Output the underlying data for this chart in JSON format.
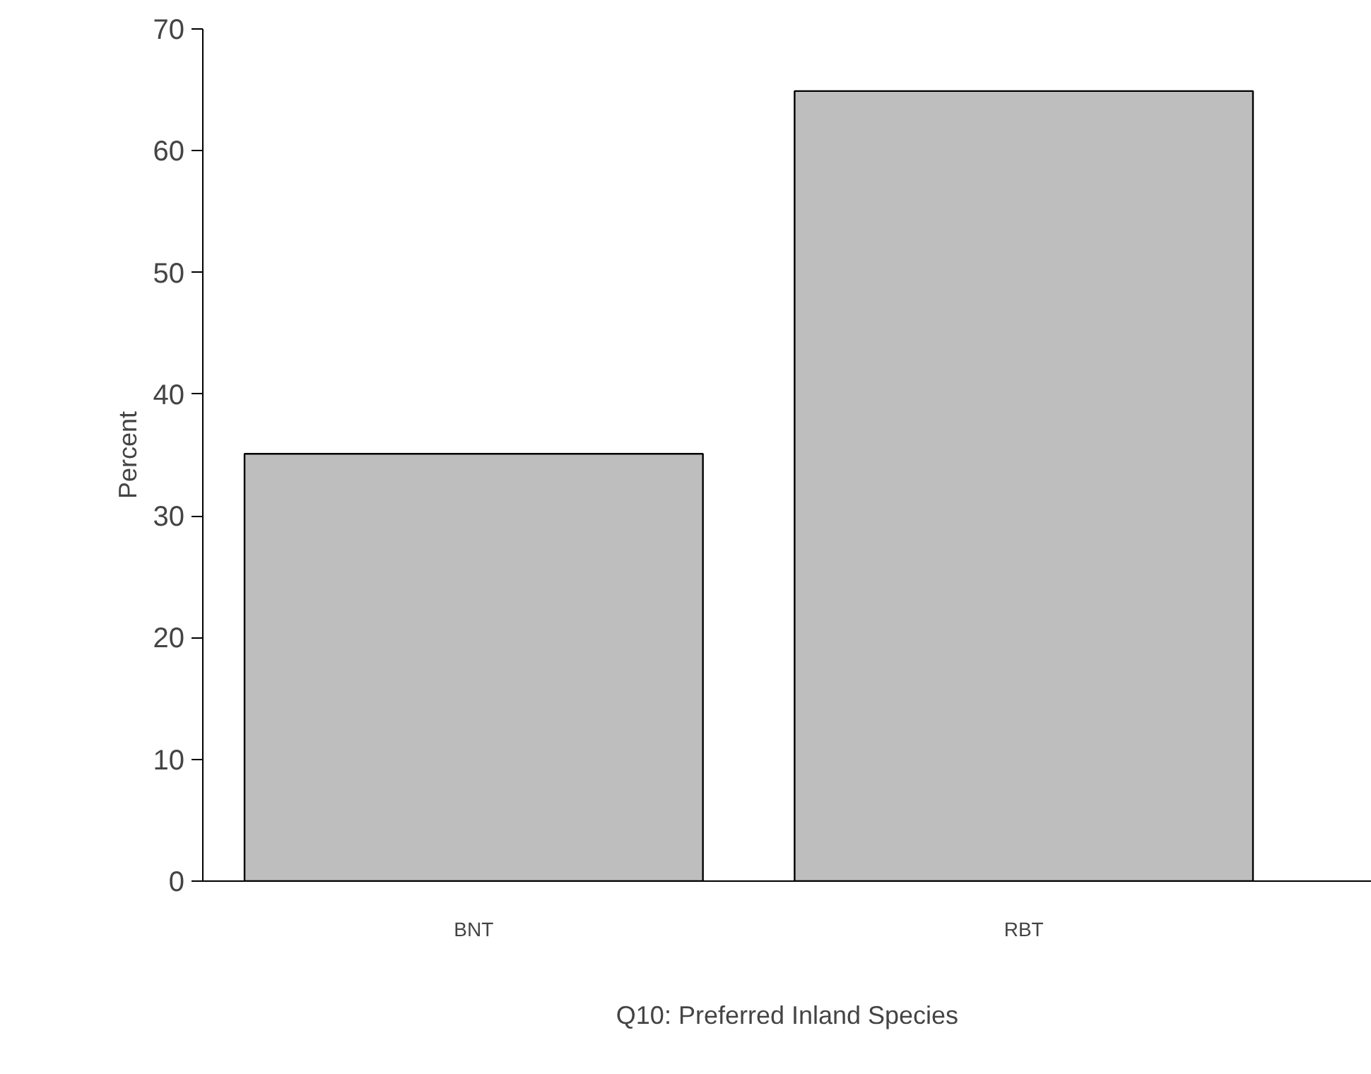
{
  "chart_data": {
    "type": "bar",
    "categories": [
      "BNT",
      "RBT"
    ],
    "values": [
      35.1,
      64.9
    ],
    "color": "#bebebe",
    "xlabel": "Q10: Preferred Inland Species",
    "ylabel": "Percent",
    "ylim": [
      0,
      70
    ],
    "yticks": [
      0,
      10,
      20,
      30,
      40,
      50,
      60,
      70
    ],
    "grid": false
  }
}
